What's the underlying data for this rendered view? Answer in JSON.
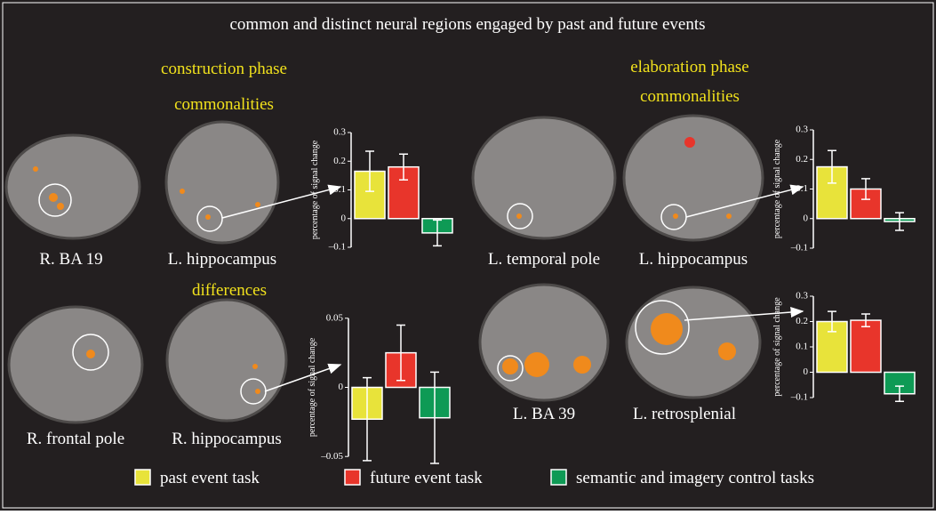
{
  "title": "common and distinct neural regions engaged by past and future events",
  "section_labels": [
    "construction phase",
    "commonalities",
    "elaboration phase",
    "commonalities",
    "differences"
  ],
  "region_labels": [
    "R. BA 19",
    "L. hippocampus",
    "L. temporal pole",
    "L. hippocampus",
    "R. frontal pole",
    "R. hippocampus",
    "L. BA 39",
    "L. retrosplenial"
  ],
  "legend": [
    {
      "name": "past event task",
      "color": "#e8e33a"
    },
    {
      "name": "future event task",
      "color": "#e8352b"
    },
    {
      "name": "semantic and imagery control tasks",
      "color": "#0e9a55"
    }
  ],
  "chart_data": [
    {
      "type": "bar",
      "ylabel": "percentage of signal change",
      "categories": [
        null,
        null,
        null
      ],
      "values": [
        0.165,
        0.18,
        -0.05
      ],
      "errors": [
        0.07,
        0.045,
        0.045
      ],
      "colors": [
        "#e8e33a",
        "#e8352b",
        "#0e9a55"
      ],
      "ylim": [
        -0.1,
        0.3
      ],
      "yticks": [
        {
          "value": -0.1,
          "label": "–0.1"
        },
        0,
        0.1,
        0.2,
        0.3
      ]
    },
    {
      "type": "bar",
      "ylabel": "percentage of signal change",
      "categories": [
        null,
        null,
        null
      ],
      "values": [
        0.175,
        0.1,
        -0.01
      ],
      "errors": [
        0.055,
        0.035,
        0.03
      ],
      "colors": [
        "#e8e33a",
        "#e8352b",
        "#0e9a55"
      ],
      "ylim": [
        -0.1,
        0.3
      ],
      "yticks": [
        {
          "value": -0.1,
          "label": "–0.1"
        },
        0,
        0.1,
        0.2,
        0.3
      ]
    },
    {
      "type": "bar",
      "ylabel": "percentage of signal change",
      "categories": [
        null,
        null,
        null
      ],
      "values": [
        -0.023,
        0.025,
        -0.022
      ],
      "errors": [
        0.03,
        0.02,
        0.033
      ],
      "colors": [
        "#e8e33a",
        "#e8352b",
        "#0e9a55"
      ],
      "ylim": [
        -0.055,
        0.055
      ],
      "yticks": [
        {
          "value": -0.05,
          "label": "–0.05"
        },
        0,
        0.05
      ]
    },
    {
      "type": "bar",
      "ylabel": "percentage of signal change",
      "categories": [
        null,
        null,
        null
      ],
      "values": [
        0.2,
        0.205,
        -0.085
      ],
      "errors": [
        0.04,
        0.025,
        0.03
      ],
      "colors": [
        "#e8e33a",
        "#e8352b",
        "#0e9a55"
      ],
      "ylim": [
        -0.1,
        0.3
      ],
      "yticks": [
        {
          "value": -0.1,
          "label": "–0.1"
        },
        0,
        0.1,
        0.2,
        0.3
      ]
    }
  ]
}
